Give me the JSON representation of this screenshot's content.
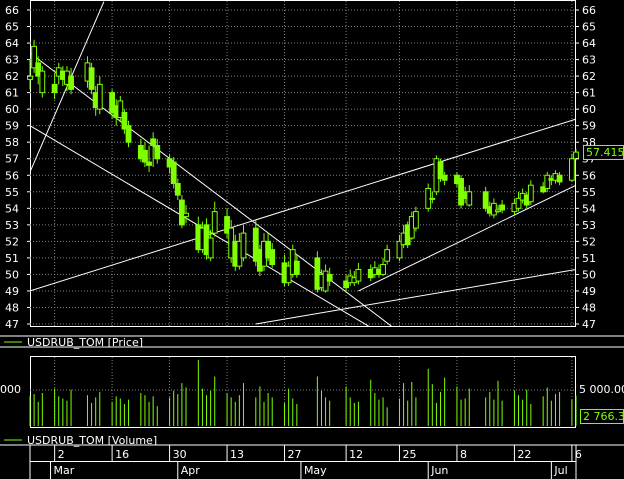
{
  "price_panel": {
    "legend_label": "USDRUB_TOM [Price]",
    "last_price_label": "57.415",
    "y_ticks": [
      47,
      48,
      49,
      50,
      51,
      52,
      53,
      54,
      55,
      56,
      57,
      58,
      59,
      60,
      61,
      62,
      63,
      64,
      65,
      66
    ]
  },
  "volume_panel": {
    "legend_label": "USDRUB_TOM [Volume]",
    "left_tick_label": "000",
    "right_tick_label": "5 000.000",
    "last_volume_label": "2 766.34"
  },
  "time_axis": {
    "day_labels": [
      "2",
      "16",
      "30",
      "13",
      "27",
      "12",
      "25",
      "8",
      "22",
      "6"
    ],
    "month_labels": [
      "Mar",
      "Apr",
      "May",
      "Jun",
      "Jul"
    ]
  },
  "colors": {
    "candle": "#7fff00",
    "grid": "#808080",
    "text": "#ffffff",
    "badge_text": "#7fff00",
    "background": "#000000"
  },
  "chart_data": [
    {
      "type": "candlestick",
      "title": "",
      "series_name": "USDRUB_TOM [Price]",
      "ylim": [
        47,
        66
      ],
      "x_range": [
        "2015-02-24",
        "2015-07-07"
      ],
      "x": [
        "2015-02-24",
        "2015-02-25",
        "2015-02-26",
        "2015-02-27",
        "2015-03-02",
        "2015-03-03",
        "2015-03-04",
        "2015-03-05",
        "2015-03-06",
        "2015-03-10",
        "2015-03-11",
        "2015-03-12",
        "2015-03-13",
        "2015-03-16",
        "2015-03-17",
        "2015-03-18",
        "2015-03-19",
        "2015-03-20",
        "2015-03-23",
        "2015-03-24",
        "2015-03-25",
        "2015-03-26",
        "2015-03-27",
        "2015-03-30",
        "2015-03-31",
        "2015-04-01",
        "2015-04-02",
        "2015-04-03",
        "2015-04-06",
        "2015-04-07",
        "2015-04-08",
        "2015-04-09",
        "2015-04-10",
        "2015-04-13",
        "2015-04-14",
        "2015-04-15",
        "2015-04-16",
        "2015-04-17",
        "2015-04-20",
        "2015-04-21",
        "2015-04-22",
        "2015-04-23",
        "2015-04-24",
        "2015-04-27",
        "2015-04-28",
        "2015-04-29",
        "2015-04-30",
        "2015-05-05",
        "2015-05-06",
        "2015-05-07",
        "2015-05-08",
        "2015-05-12",
        "2015-05-13",
        "2015-05-14",
        "2015-05-15",
        "2015-05-18",
        "2015-05-19",
        "2015-05-20",
        "2015-05-21",
        "2015-05-22",
        "2015-05-25",
        "2015-05-26",
        "2015-05-27",
        "2015-05-28",
        "2015-05-29",
        "2015-06-01",
        "2015-06-02",
        "2015-06-03",
        "2015-06-04",
        "2015-06-05",
        "2015-06-08",
        "2015-06-09",
        "2015-06-10",
        "2015-06-11",
        "2015-06-15",
        "2015-06-16",
        "2015-06-17",
        "2015-06-18",
        "2015-06-19",
        "2015-06-22",
        "2015-06-23",
        "2015-06-24",
        "2015-06-25",
        "2015-06-26",
        "2015-06-29",
        "2015-06-30",
        "2015-07-01",
        "2015-07-02",
        "2015-07-03",
        "2015-07-06",
        "2015-07-07"
      ],
      "open": [
        61.8,
        62.5,
        62.8,
        61.0,
        61.5,
        62.0,
        62.3,
        61.5,
        62.0,
        61.7,
        62.5,
        61.0,
        60.0,
        61.0,
        60.2,
        59.5,
        59.8,
        59.0,
        57.8,
        57.5,
        56.8,
        58.2,
        57.8,
        57.0,
        56.8,
        55.5,
        54.5,
        53.5,
        53.0,
        51.5,
        53.0,
        51.0,
        52.5,
        53.5,
        51.0,
        52.0,
        50.5,
        51.0,
        52.8,
        51.5,
        50.5,
        52.0,
        51.5,
        50.7,
        49.5,
        50.0,
        50.8,
        51.0,
        49.2,
        49.0,
        50.0,
        49.6,
        49.5,
        49.5,
        49.6,
        50.3,
        50.0,
        50.3,
        50.0,
        50.8,
        51.0,
        51.8,
        53.0,
        52.2,
        52.8,
        54.0,
        54.6,
        55.0,
        56.8,
        56.0,
        56.0,
        55.8,
        55.0,
        54.2,
        55.0,
        54.1,
        53.6,
        53.8,
        54.2,
        53.8,
        54.0,
        54.5,
        54.8,
        54.4,
        55.3,
        55.2,
        55.8,
        55.7,
        56.0,
        55.7,
        57.0
      ],
      "close": [
        62.0,
        63.8,
        62.0,
        62.3,
        61.0,
        62.5,
        61.8,
        62.3,
        61.2,
        62.8,
        61.2,
        60.1,
        61.5,
        59.8,
        59.5,
        60.5,
        58.8,
        58.0,
        57.0,
        56.8,
        56.6,
        57.8,
        57.0,
        56.5,
        55.5,
        54.8,
        53.0,
        53.7,
        51.5,
        52.8,
        51.2,
        52.2,
        53.8,
        52.5,
        52.8,
        50.5,
        52.0,
        52.5,
        50.8,
        50.2,
        52.0,
        51.0,
        50.6,
        49.5,
        50.5,
        51.5,
        50.0,
        49.1,
        50.0,
        50.2,
        49.6,
        49.2,
        49.9,
        49.8,
        50.3,
        49.8,
        50.4,
        50.0,
        50.6,
        51.5,
        52.0,
        52.5,
        51.8,
        53.5,
        53.8,
        55.2,
        54.6,
        57.0,
        55.8,
        55.7,
        55.5,
        54.2,
        54.6,
        55.0,
        54.0,
        53.7,
        54.3,
        53.9,
        53.9,
        54.3,
        54.6,
        54.9,
        54.2,
        55.4,
        55.0,
        56.0,
        55.7,
        56.1,
        55.6,
        57.0,
        57.4
      ],
      "high": [
        63.0,
        64.2,
        63.2,
        62.6,
        62.2,
        62.8,
        62.6,
        62.6,
        62.5,
        63.2,
        62.8,
        61.4,
        62.0,
        61.2,
        60.6,
        60.8,
        60.0,
        59.3,
        58.2,
        58.0,
        57.8,
        58.6,
        58.2,
        57.3,
        57.1,
        55.8,
        54.8,
        54.2,
        53.5,
        53.2,
        53.4,
        52.7,
        54.4,
        54.0,
        53.3,
        52.4,
        52.5,
        53.0,
        53.3,
        51.8,
        52.5,
        52.5,
        51.9,
        51.2,
        50.8,
        51.8,
        51.2,
        51.4,
        50.3,
        50.6,
        50.4,
        50.0,
        50.3,
        50.2,
        50.7,
        50.6,
        50.8,
        50.6,
        51.0,
        51.8,
        52.4,
        53.0,
        53.2,
        53.8,
        54.1,
        55.5,
        55.0,
        57.2,
        57.0,
        56.2,
        56.2,
        56.0,
        55.3,
        55.4,
        55.3,
        54.4,
        54.6,
        54.2,
        54.5,
        54.6,
        55.0,
        55.2,
        55.0,
        55.7,
        55.6,
        56.2,
        56.0,
        56.3,
        56.2,
        57.3,
        57.6
      ],
      "low": [
        61.2,
        62.2,
        61.5,
        60.7,
        60.6,
        61.5,
        61.4,
        61.1,
        60.9,
        61.3,
        60.9,
        59.6,
        59.7,
        59.4,
        59.0,
        59.2,
        58.5,
        57.7,
        56.8,
        56.5,
        56.2,
        56.5,
        56.7,
        56.1,
        55.2,
        54.5,
        52.8,
        53.1,
        51.3,
        51.3,
        50.9,
        50.8,
        52.3,
        52.2,
        50.7,
        50.2,
        50.3,
        50.8,
        50.5,
        49.9,
        50.2,
        50.8,
        50.4,
        49.3,
        49.3,
        49.8,
        49.8,
        48.9,
        49.0,
        48.9,
        49.3,
        49.0,
        49.3,
        49.3,
        49.4,
        49.6,
        49.8,
        49.8,
        49.9,
        50.6,
        50.8,
        51.6,
        51.6,
        52.1,
        52.6,
        53.8,
        54.3,
        54.8,
        55.6,
        55.4,
        55.3,
        54.0,
        54.3,
        54.1,
        53.8,
        53.5,
        53.4,
        53.7,
        53.7,
        53.6,
        53.8,
        54.3,
        54.0,
        54.2,
        54.9,
        55.0,
        55.4,
        55.5,
        55.4,
        55.6,
        56.9
      ]
    },
    {
      "type": "bar",
      "series_name": "USDRUB_TOM [Volume]",
      "ylim": [
        0,
        7000
      ],
      "x_range": [
        "2015-02-24",
        "2015-07-07"
      ],
      "values": [
        2700,
        2900,
        2200,
        3000,
        3400,
        2700,
        2500,
        2300,
        3300,
        2800,
        2100,
        2600,
        3100,
        2200,
        2700,
        2500,
        2000,
        2400,
        3000,
        2800,
        2200,
        2700,
        1800,
        2600,
        3200,
        2900,
        3900,
        3500,
        6000,
        3400,
        2800,
        3200,
        4500,
        3000,
        2600,
        2200,
        2800,
        3900,
        2600,
        3600,
        2200,
        3000,
        2600,
        2100,
        3400,
        2500,
        2000,
        4500,
        3200,
        2600,
        2300,
        3600,
        2600,
        2100,
        2200,
        4200,
        3000,
        2400,
        2600,
        1700,
        2500,
        3900,
        2300,
        4000,
        2600,
        5200,
        3800,
        2100,
        3100,
        4400,
        3600,
        2400,
        2500,
        3400,
        2600,
        3100,
        2400,
        4100,
        2300,
        3200,
        2800,
        2400,
        3300,
        2000,
        2700,
        3500,
        2300,
        2900,
        3100,
        2400,
        2766.34
      ]
    }
  ]
}
